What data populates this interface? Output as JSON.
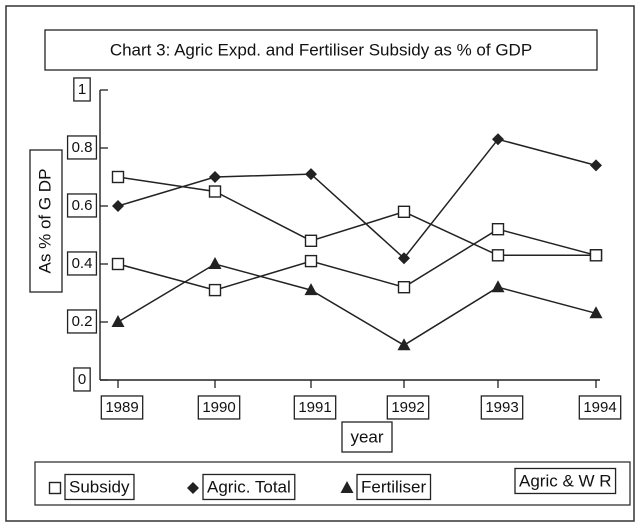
{
  "chart_data": {
    "type": "line",
    "title": "Chart 3: Agric Expd. and Fertiliser Subsidy as % of GDP",
    "x_label": "year",
    "y_label": "As % of G DP",
    "categories": [
      "1989",
      "1990",
      "1991",
      "1992",
      "1993",
      "1994"
    ],
    "series": [
      {
        "name": "Subsidy",
        "color": "#222222",
        "marker": "square",
        "values": [
          0.7,
          0.65,
          0.48,
          0.58,
          0.43,
          0.43
        ]
      },
      {
        "name": "Agric. Total",
        "color": "#222222",
        "marker": "diamond",
        "values": [
          0.6,
          0.7,
          0.71,
          0.42,
          0.83,
          0.74
        ]
      },
      {
        "name": "Fertiliser",
        "color": "#222222",
        "marker": "triangle",
        "values": [
          0.2,
          0.4,
          0.31,
          0.12,
          0.32,
          0.23
        ]
      },
      {
        "name": "Agric & W R",
        "color": "#222222",
        "marker": "square",
        "values": [
          0.4,
          0.31,
          0.41,
          0.32,
          0.52,
          0.43
        ]
      }
    ],
    "ylim": [
      0,
      1
    ],
    "yticks": [
      0,
      0.2,
      0.4,
      0.6,
      0.8,
      1
    ]
  }
}
